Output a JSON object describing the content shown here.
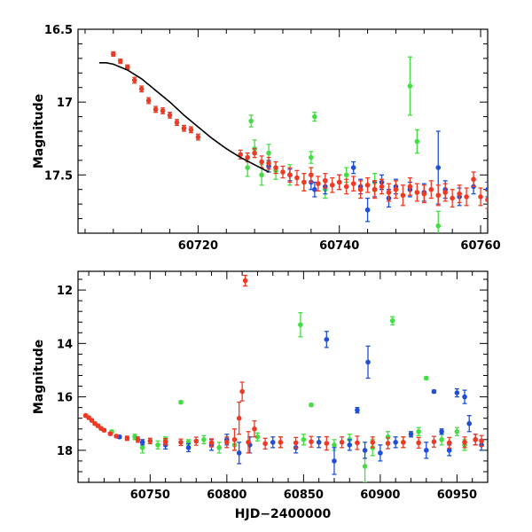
{
  "chart_data": [
    {
      "type": "scatter",
      "title": "",
      "xlabel": "",
      "ylabel": "Magnitude",
      "xlim": [
        60703,
        60761
      ],
      "ylim": [
        17.9,
        16.5
      ],
      "y_inverted": true,
      "x_ticks": [
        60720,
        60740,
        60760
      ],
      "x_tick_labels": [
        "60720",
        "60740",
        "60760"
      ],
      "y_ticks": [
        16.5,
        17,
        17.5
      ],
      "y_tick_labels": [
        "16.5",
        "17",
        "17.5"
      ],
      "colors": {
        "red": "#ee3a24",
        "green": "#44dd44",
        "blue": "#1f4fd8",
        "model": "#000000"
      },
      "model_curve": {
        "name": "model",
        "x": [
          60706,
          60707,
          60708,
          60710,
          60712,
          60714,
          60716,
          60718,
          60720,
          60722,
          60724,
          60726,
          60728,
          60730
        ],
        "y": [
          16.73,
          16.73,
          16.74,
          16.78,
          16.84,
          16.92,
          17.0,
          17.09,
          17.17,
          17.25,
          17.32,
          17.38,
          17.43,
          17.48
        ]
      },
      "series": [
        {
          "name": "red",
          "color": "#ee3a24",
          "x": [
            60708,
            60709,
            60710,
            60711,
            60712,
            60713,
            60714,
            60715,
            60716,
            60717,
            60718,
            60719,
            60720,
            60726,
            60727,
            60728,
            60729,
            60730,
            60731,
            60732,
            60733,
            60734,
            60735,
            60736,
            60737,
            60738,
            60739,
            60740,
            60741,
            60742,
            60743,
            60744,
            60745,
            60746,
            60747,
            60748,
            60749,
            60750,
            60751,
            60752,
            60753,
            60754,
            60755,
            60756,
            60757,
            60758,
            60759,
            60760,
            60761
          ],
          "y": [
            16.67,
            16.72,
            16.76,
            16.85,
            16.91,
            16.99,
            17.05,
            17.06,
            17.09,
            17.14,
            17.18,
            17.19,
            17.24,
            17.36,
            17.38,
            17.35,
            17.41,
            17.42,
            17.45,
            17.48,
            17.5,
            17.52,
            17.55,
            17.5,
            17.56,
            17.54,
            17.57,
            17.55,
            17.58,
            17.56,
            17.6,
            17.57,
            17.6,
            17.58,
            17.62,
            17.6,
            17.64,
            17.58,
            17.62,
            17.63,
            17.6,
            17.64,
            17.62,
            17.66,
            17.63,
            17.65,
            17.53,
            17.65,
            17.67
          ],
          "err": [
            0.015,
            0.015,
            0.015,
            0.02,
            0.02,
            0.02,
            0.02,
            0.02,
            0.02,
            0.02,
            0.02,
            0.02,
            0.02,
            0.03,
            0.03,
            0.03,
            0.04,
            0.04,
            0.04,
            0.04,
            0.05,
            0.05,
            0.06,
            0.05,
            0.05,
            0.05,
            0.05,
            0.05,
            0.05,
            0.05,
            0.06,
            0.05,
            0.06,
            0.05,
            0.06,
            0.06,
            0.07,
            0.06,
            0.06,
            0.06,
            0.06,
            0.07,
            0.06,
            0.06,
            0.06,
            0.06,
            0.05,
            0.06,
            0.06
          ]
        },
        {
          "name": "green",
          "color": "#44dd44",
          "x": [
            60727,
            60727.5,
            60728,
            60729,
            60730,
            60731,
            60733,
            60735,
            60736,
            60736.5,
            60741,
            60745,
            60750,
            60751,
            60754,
            60738
          ],
          "y": [
            17.45,
            17.13,
            17.32,
            17.5,
            17.35,
            17.47,
            17.5,
            17.55,
            17.38,
            17.1,
            17.5,
            17.55,
            16.89,
            17.27,
            17.85,
            17.6
          ],
          "err": [
            0.06,
            0.04,
            0.06,
            0.07,
            0.06,
            0.06,
            0.07,
            0.06,
            0.04,
            0.03,
            0.05,
            0.06,
            0.2,
            0.08,
            0.1,
            0.06
          ]
        },
        {
          "name": "blue",
          "color": "#1f4fd8",
          "x": [
            60730,
            60733,
            60736,
            60738,
            60740,
            60742,
            60743,
            60744,
            60745,
            60746,
            60748,
            60750,
            60752,
            60754,
            60755,
            60757,
            60759,
            60761,
            60736.5,
            60747
          ],
          "y": [
            17.44,
            17.5,
            17.55,
            17.58,
            17.55,
            17.45,
            17.58,
            17.74,
            17.6,
            17.55,
            17.58,
            17.6,
            17.62,
            17.45,
            17.6,
            17.65,
            17.58,
            17.6,
            17.6,
            17.66
          ],
          "err": [
            0.04,
            0.04,
            0.05,
            0.05,
            0.05,
            0.04,
            0.05,
            0.08,
            0.05,
            0.05,
            0.05,
            0.05,
            0.06,
            0.25,
            0.06,
            0.06,
            0.05,
            0.05,
            0.05,
            0.06
          ]
        }
      ]
    },
    {
      "type": "scatter",
      "title": "",
      "xlabel": "HJD−2400000",
      "ylabel": "Magnitude",
      "xlim": [
        60703,
        60970
      ],
      "ylim": [
        19.2,
        11.3
      ],
      "y_inverted": true,
      "x_ticks": [
        60750,
        60800,
        60850,
        60900,
        60950
      ],
      "x_tick_labels": [
        "60750",
        "60800",
        "60850",
        "60900",
        "60950"
      ],
      "y_ticks": [
        12,
        14,
        16,
        18
      ],
      "y_tick_labels": [
        "12",
        "14",
        "16",
        "18"
      ],
      "colors": {
        "red": "#ee3a24",
        "green": "#44dd44",
        "blue": "#1f4fd8"
      },
      "series": [
        {
          "name": "red",
          "color": "#ee3a24",
          "x": [
            60708,
            60710,
            60712,
            60714,
            60716,
            60718,
            60720,
            60724,
            60728,
            60735,
            60742,
            60750,
            60760,
            60770,
            60780,
            60790,
            60800,
            60805,
            60808,
            60810,
            60812,
            60814,
            60818,
            60825,
            60835,
            60845,
            60855,
            60865,
            60875,
            60885,
            60895,
            60905,
            60915,
            60925,
            60935,
            60945,
            60955,
            60962,
            60966
          ],
          "y": [
            16.7,
            16.78,
            16.88,
            17.0,
            17.08,
            17.18,
            17.25,
            17.38,
            17.47,
            17.55,
            17.6,
            17.65,
            17.68,
            17.7,
            17.66,
            17.72,
            17.7,
            17.6,
            16.8,
            15.8,
            11.65,
            17.7,
            17.2,
            17.75,
            17.7,
            17.72,
            17.68,
            17.74,
            17.7,
            17.72,
            17.7,
            17.74,
            17.7,
            17.72,
            17.68,
            17.72,
            17.7,
            17.6,
            17.65
          ],
          "err": [
            0.05,
            0.05,
            0.05,
            0.05,
            0.05,
            0.05,
            0.05,
            0.05,
            0.05,
            0.08,
            0.1,
            0.1,
            0.12,
            0.12,
            0.15,
            0.15,
            0.2,
            0.4,
            0.6,
            0.35,
            0.2,
            0.4,
            0.3,
            0.2,
            0.2,
            0.2,
            0.2,
            0.25,
            0.2,
            0.25,
            0.2,
            0.2,
            0.2,
            0.2,
            0.2,
            0.2,
            0.2,
            0.2,
            0.2
          ]
        },
        {
          "name": "green",
          "color": "#44dd44",
          "x": [
            60725,
            60740,
            60745,
            60755,
            60760,
            60770,
            60775,
            60785,
            60795,
            60805,
            60820,
            60835,
            60848,
            60850,
            60855,
            60870,
            60880,
            60890,
            60895,
            60905,
            60908,
            60915,
            60925,
            60930,
            60940,
            60950,
            60955
          ],
          "y": [
            17.3,
            17.5,
            17.9,
            17.8,
            17.6,
            16.2,
            17.7,
            17.6,
            17.9,
            17.8,
            17.5,
            17.7,
            13.3,
            17.6,
            16.3,
            17.8,
            17.6,
            18.6,
            17.9,
            17.5,
            13.15,
            17.7,
            17.3,
            15.3,
            17.6,
            17.3,
            17.8
          ],
          "err": [
            0.05,
            0.1,
            0.2,
            0.15,
            0.1,
            0.05,
            0.1,
            0.15,
            0.2,
            0.2,
            0.15,
            0.2,
            0.45,
            0.2,
            0.05,
            0.2,
            0.2,
            0.6,
            0.3,
            0.2,
            0.15,
            0.2,
            0.15,
            0.05,
            0.2,
            0.15,
            0.2
          ]
        },
        {
          "name": "blue",
          "color": "#1f4fd8",
          "x": [
            60730,
            60745,
            60760,
            60775,
            60790,
            60800,
            60808,
            60815,
            60830,
            60845,
            60860,
            60865,
            60870,
            60880,
            60885,
            60890,
            60892,
            60900,
            60910,
            60920,
            60930,
            60935,
            60940,
            60945,
            60950,
            60955,
            60958,
            60962,
            60966
          ],
          "y": [
            17.5,
            17.7,
            17.8,
            17.9,
            17.8,
            17.6,
            18.1,
            17.8,
            17.7,
            17.9,
            17.7,
            13.85,
            18.4,
            17.8,
            16.5,
            18.0,
            14.7,
            18.1,
            17.7,
            17.4,
            18.0,
            15.8,
            17.3,
            18.0,
            15.85,
            16.0,
            17.0,
            17.6,
            17.8
          ],
          "err": [
            0.05,
            0.1,
            0.15,
            0.15,
            0.2,
            0.2,
            0.4,
            0.3,
            0.2,
            0.2,
            0.2,
            0.3,
            0.5,
            0.2,
            0.1,
            0.3,
            0.6,
            0.3,
            0.2,
            0.1,
            0.3,
            0.05,
            0.1,
            0.2,
            0.15,
            0.25,
            0.3,
            0.2,
            0.2
          ]
        }
      ]
    }
  ]
}
